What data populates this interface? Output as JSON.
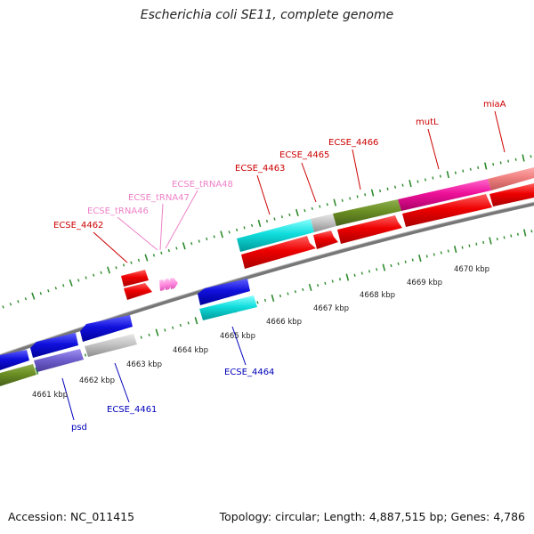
{
  "title": "Escherichia coli SE11, complete genome",
  "footer": {
    "accession": "Accession: NC_011415",
    "stats": "Topology: circular; Length: 4,887,515 bp; Genes: 4,786"
  },
  "colors": {
    "forward_label": "#cc0000",
    "reverse_label": "#0000bb",
    "trna_label": "#ee82c8",
    "backbone": "#777777",
    "tick": "#2e8b2e"
  },
  "scale_labels": [
    "4661 kbp",
    "4662 kbp",
    "4663 kbp",
    "4664 kbp",
    "4665 kbp",
    "4666 kbp",
    "4667 kbp",
    "4668 kbp",
    "4669 kbp",
    "4670 kbp"
  ],
  "gene_labels": {
    "forward": [
      "ECSE_4462",
      "ECSE_4463",
      "ECSE_4465",
      "ECSE_4466",
      "mutL",
      "miaA"
    ],
    "trna": [
      "ECSE_tRNA46",
      "ECSE_tRNA47",
      "ECSE_tRNA48"
    ],
    "reverse": [
      "psd",
      "ECSE_4461",
      "ECSE_4464"
    ]
  },
  "features": {
    "forward_track": [
      "red",
      "red",
      "red",
      "red",
      "red"
    ],
    "forward_category": [
      "cyan",
      "gray",
      "olive",
      "magenta",
      "salmon"
    ],
    "reverse_track": [
      "blue",
      "blue",
      "blue",
      "blue"
    ],
    "reverse_category": [
      "olive",
      "slateblue",
      "gray",
      "cyan"
    ],
    "trna": [
      "pink",
      "pink",
      "pink"
    ]
  }
}
